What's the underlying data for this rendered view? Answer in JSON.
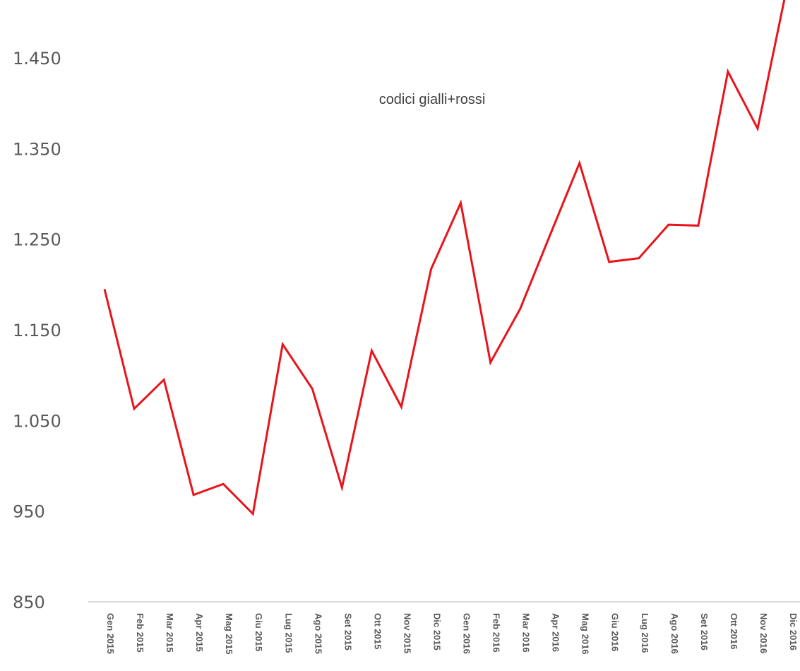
{
  "chart_data": {
    "type": "line",
    "title": "",
    "xlabel": "",
    "ylabel": "",
    "annotation": "codici gialli+rossi",
    "categories": [
      "Gen 2015",
      "Feb 2015",
      "Mar 2015",
      "Apr 2015",
      "Mag 2015",
      "Giu 2015",
      "Lug 2015",
      "Ago 2015",
      "Set 2015",
      "Ott 2015",
      "Nov 2015",
      "Dic 2015",
      "Gen 2016",
      "Feb 2016",
      "Mar 2016",
      "Apr 2016",
      "Mag 2016",
      "Giu 2016",
      "Lug 2016",
      "Ago 2016",
      "Set 2016",
      "Ott 2016",
      "Nov 2016",
      "Dic 2016"
    ],
    "series": [
      {
        "values": [
          1195,
          1063,
          1095,
          968,
          980,
          947,
          1134,
          1085,
          976,
          1127,
          1065,
          1217,
          1290,
          1114,
          1173,
          1254,
          1334,
          1225,
          1229,
          1266,
          1265,
          1435,
          1372,
          1530
        ],
        "color": "#e8141b"
      }
    ],
    "ylim": [
      850,
      1500
    ],
    "yticks": [
      850,
      950,
      1050,
      1150,
      1250,
      1350,
      1450
    ],
    "ytick_labels": [
      "850",
      "950",
      "1.050",
      "1.150",
      "1.250",
      "1.350",
      "1.450"
    ],
    "grid": false,
    "legend": "none"
  }
}
